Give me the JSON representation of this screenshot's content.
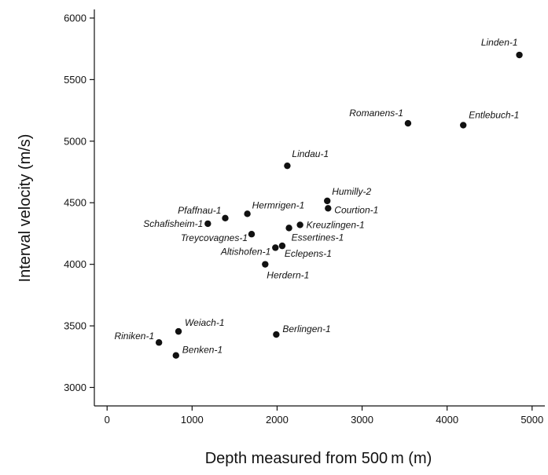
{
  "chart_data": {
    "type": "scatter",
    "title": "",
    "xlabel": "Depth measured from 500 m (m)",
    "ylabel": "Interval velocity (m/s)",
    "xlim": [
      -150,
      5150
    ],
    "ylim": [
      2850,
      6070
    ],
    "xticks": [
      0,
      1000,
      2000,
      3000,
      4000,
      5000
    ],
    "yticks": [
      3000,
      3500,
      4000,
      4500,
      5000,
      5500,
      6000
    ],
    "grid": false,
    "legend": "none",
    "marker_color": "#111111",
    "points": [
      {
        "label": "Linden-1",
        "x": 4850,
        "y": 5700,
        "anchor": "end",
        "dx": -2,
        "dy": -12
      },
      {
        "label": "Romanens-1",
        "x": 3540,
        "y": 5145,
        "anchor": "end",
        "dx": -6,
        "dy": -9
      },
      {
        "label": "Entlebuch-1",
        "x": 4190,
        "y": 5130,
        "anchor": "start",
        "dx": 7,
        "dy": -9
      },
      {
        "label": "Lindau-1",
        "x": 2120,
        "y": 4800,
        "anchor": "start",
        "dx": 6,
        "dy": -11
      },
      {
        "label": "Humilly-2",
        "x": 2590,
        "y": 4515,
        "anchor": "start",
        "dx": 6,
        "dy": -8
      },
      {
        "label": "Courtion-1",
        "x": 2600,
        "y": 4455,
        "anchor": "start",
        "dx": 8,
        "dy": 6
      },
      {
        "label": "Hermrigen-1",
        "x": 1650,
        "y": 4410,
        "anchor": "start",
        "dx": 6,
        "dy": -7
      },
      {
        "label": "Pfaffnau-1",
        "x": 1390,
        "y": 4375,
        "anchor": "end",
        "dx": -5,
        "dy": -6
      },
      {
        "label": "Schafisheim-1",
        "x": 1185,
        "y": 4330,
        "anchor": "end",
        "dx": -6,
        "dy": 4
      },
      {
        "label": "Kreuzlingen-1",
        "x": 2270,
        "y": 4320,
        "anchor": "start",
        "dx": 8,
        "dy": 4
      },
      {
        "label": "Essertines-1",
        "x": 2140,
        "y": 4295,
        "anchor": "start",
        "dx": 3,
        "dy": 16
      },
      {
        "label": "Treycovagnes-1",
        "x": 1700,
        "y": 4245,
        "anchor": "end",
        "dx": -5,
        "dy": 9
      },
      {
        "label": "Altishofen-1",
        "x": 1980,
        "y": 4135,
        "anchor": "end",
        "dx": -6,
        "dy": 9
      },
      {
        "label": "Eclepens-1",
        "x": 2060,
        "y": 4150,
        "anchor": "start",
        "dx": 3,
        "dy": 14
      },
      {
        "label": "Herdern-1",
        "x": 1860,
        "y": 4000,
        "anchor": "start",
        "dx": 2,
        "dy": 18
      },
      {
        "label": "Weiach-1",
        "x": 840,
        "y": 3455,
        "anchor": "start",
        "dx": 8,
        "dy": -7
      },
      {
        "label": "Berlingen-1",
        "x": 1990,
        "y": 3430,
        "anchor": "start",
        "dx": 8,
        "dy": -3
      },
      {
        "label": "Riniken-1",
        "x": 610,
        "y": 3365,
        "anchor": "end",
        "dx": -6,
        "dy": -4
      },
      {
        "label": "Benken-1",
        "x": 810,
        "y": 3260,
        "anchor": "start",
        "dx": 8,
        "dy": -3
      }
    ]
  }
}
